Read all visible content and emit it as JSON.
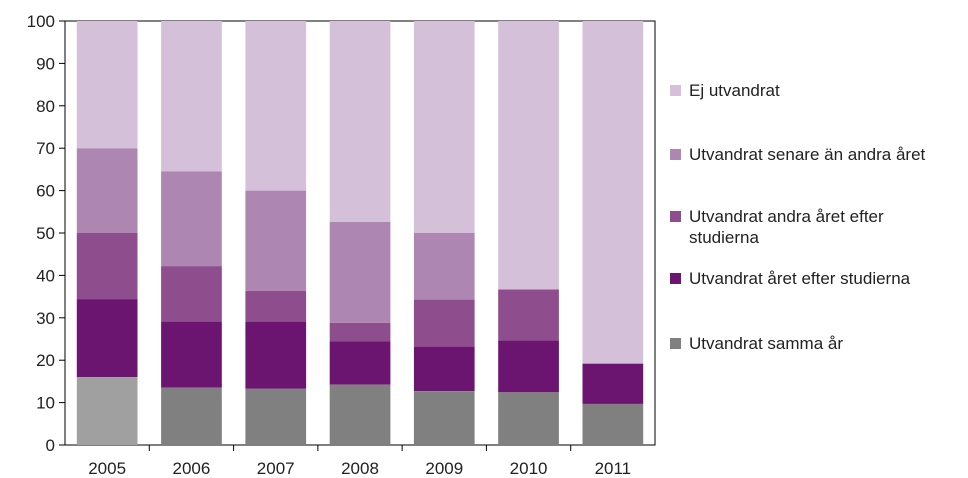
{
  "chart_data": {
    "type": "bar",
    "stacked": true,
    "title": "",
    "xlabel": "",
    "ylabel": "",
    "ylim": [
      0,
      100
    ],
    "yticks": [
      0,
      10,
      20,
      30,
      40,
      50,
      60,
      70,
      80,
      90,
      100
    ],
    "categories": [
      "2005",
      "2006",
      "2007",
      "2008",
      "2009",
      "2010",
      "2011"
    ],
    "legend_position": "right",
    "grid": false,
    "series": [
      {
        "name": "Utvandrat samma år",
        "color": "#808080",
        "values": [
          16,
          13.5,
          13.3,
          14.2,
          12.7,
          12.5,
          9.7
        ]
      },
      {
        "name": "Utvandrat året efter studierna",
        "color": "#6b1470",
        "values": [
          18.4,
          15.6,
          15.8,
          10.2,
          10.5,
          12.2,
          9.5
        ]
      },
      {
        "name": "Utvandrat andra året efter studierna",
        "color": "#8e4d8c",
        "values": [
          15.6,
          13.1,
          7.3,
          4.4,
          11.1,
          12.0,
          0
        ]
      },
      {
        "name": "Utvandrat senare än andra året",
        "color": "#ad86b2",
        "values": [
          20.0,
          22.3,
          23.6,
          23.8,
          15.7,
          0,
          0
        ]
      },
      {
        "name": "Ej utvandrat",
        "color": "#d5c0da",
        "values": [
          30.0,
          35.5,
          40.0,
          47.4,
          50.0,
          63.3,
          80.8
        ]
      }
    ],
    "first_bar_sammaar_color": "#a0a0a0"
  }
}
